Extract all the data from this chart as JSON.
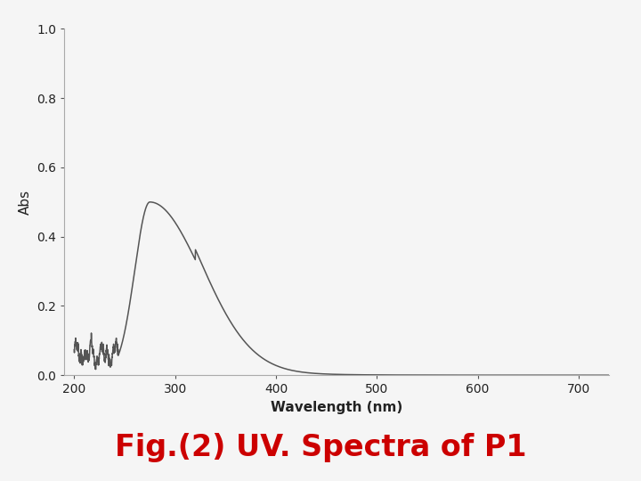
{
  "xlabel": "Wavelength (nm)",
  "ylabel": "Abs",
  "xlim": [
    190,
    730
  ],
  "ylim": [
    0.0,
    1.0
  ],
  "xticks": [
    200,
    300,
    400,
    500,
    600,
    700
  ],
  "yticks": [
    0.0,
    0.2,
    0.4,
    0.6,
    0.8,
    1.0
  ],
  "line_color": "#555555",
  "line_width": 1.1,
  "background_color": "#f5f5f5",
  "plot_bg_color": "#f5f5f5",
  "title": "Fig.(2) UV. Spectra of P1",
  "title_color": "#cc0000",
  "title_fontsize": 24,
  "axis_fontsize": 10,
  "label_fontsize": 11
}
